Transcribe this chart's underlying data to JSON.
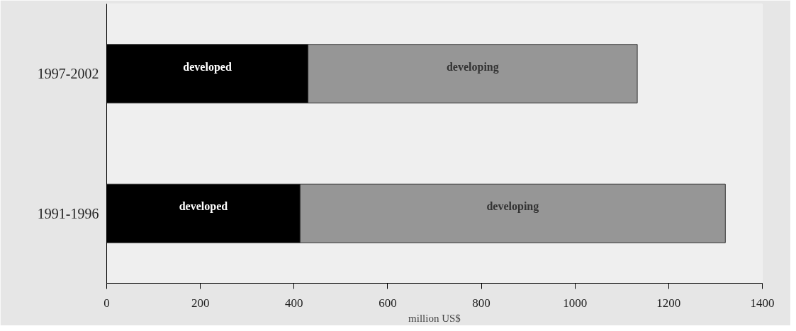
{
  "chart_data": {
    "type": "bar",
    "orientation": "horizontal",
    "stacked": true,
    "categories": [
      "1997-2002",
      "1991-1996"
    ],
    "series": [
      {
        "name": "developed",
        "color": "#000000",
        "values": [
          430,
          413
        ]
      },
      {
        "name": "developing",
        "color": "#969696",
        "values": [
          703,
          908
        ]
      }
    ],
    "xlim": [
      0,
      1400
    ],
    "xticks": [
      0,
      200,
      400,
      600,
      800,
      1000,
      1200,
      1400
    ],
    "xlabel": "million US$",
    "grid": false
  }
}
